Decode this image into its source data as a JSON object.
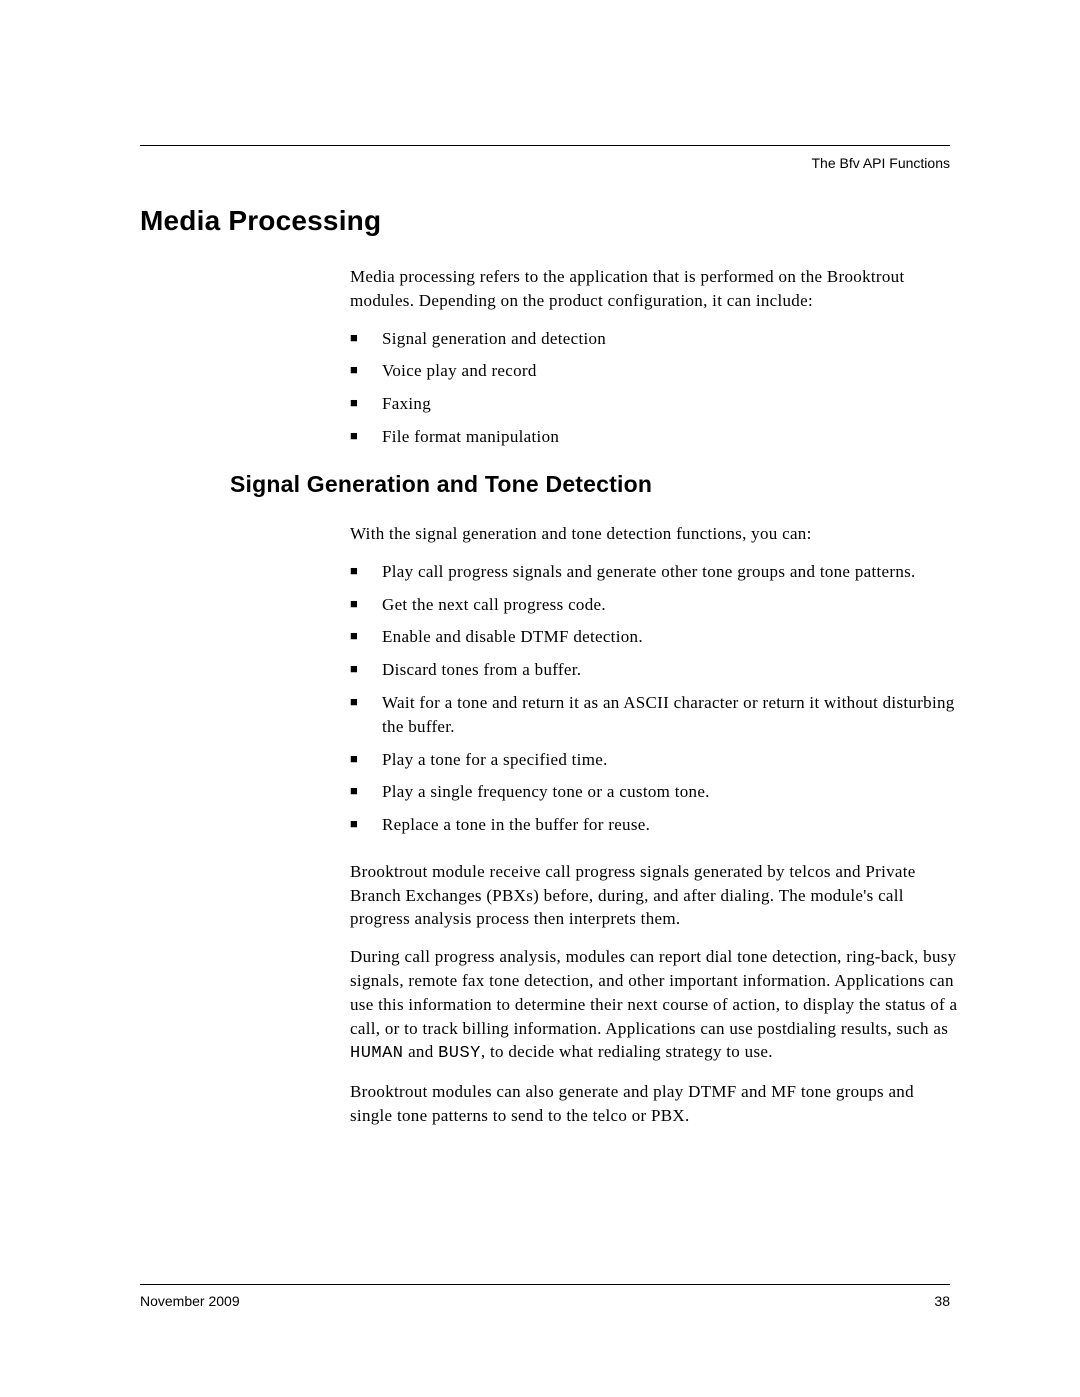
{
  "header": {
    "label": "The Bfv API Functions"
  },
  "main": {
    "h1": "Media Processing",
    "intro": "Media processing refers to the application that is performed on the Brooktrout modules. Depending on the product configuration, it can include:",
    "intro_bullets": [
      "Signal generation and detection",
      "Voice play and record",
      "Faxing",
      "File format manipulation"
    ],
    "h2": "Signal Generation and Tone Detection",
    "sig_intro": "With the signal generation and tone detection functions, you can:",
    "sig_bullets": [
      "Play call progress signals and generate other tone groups and tone patterns.",
      "Get the next call progress code.",
      "Enable and disable DTMF detection.",
      "Discard tones from a buffer.",
      "Wait for a tone and return it as an ASCII character or return it without disturbing the buffer.",
      "Play a tone for a specified time.",
      "Play a single frequency tone or a custom tone.",
      "Replace a tone in the buffer for reuse."
    ],
    "para1": "Brooktrout module receive call progress signals generated by telcos and Private Branch Exchanges (PBXs) before, during, and after dialing. The module's call progress analysis process then interprets them.",
    "para2_a": "During call progress analysis, modules can report dial tone detection, ring-back, busy signals, remote fax tone detection, and other important information. Applications can use this information to determine their next course of action, to display the status of a call, or to track billing information. Applications can use postdialing results, such as ",
    "para2_human": "HUMAN",
    "para2_and": " and ",
    "para2_busy": "BUSY",
    "para2_b": ", to decide what redialing strategy to use.",
    "para3": "Brooktrout modules can also generate and play DTMF and MF tone groups and single tone patterns to send to the telco or PBX."
  },
  "footer": {
    "date": "November 2009",
    "page": "38"
  }
}
